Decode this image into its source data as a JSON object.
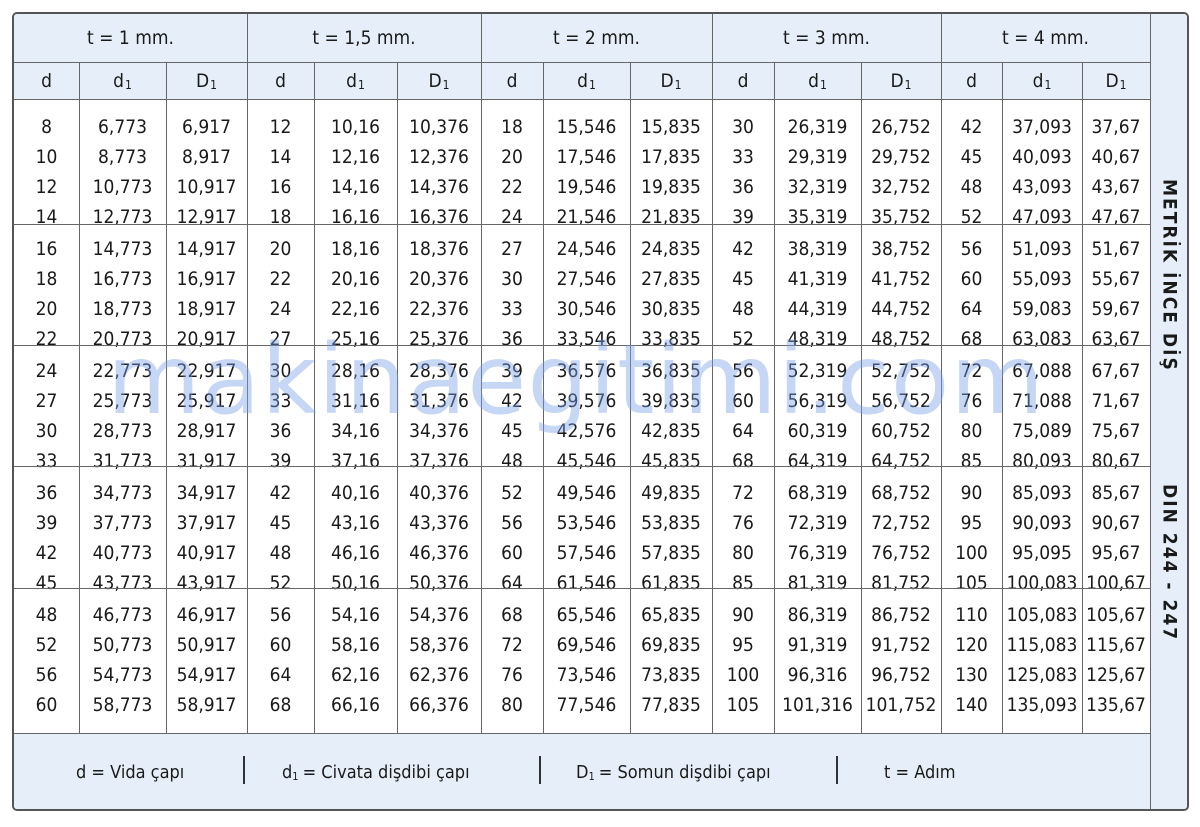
{
  "groups": [
    {
      "pitch": "t = 1 mm.",
      "col_d": "d",
      "col_d1": "d",
      "col_D1": "D",
      "rows": [
        [
          "8",
          "6,773",
          "6,917"
        ],
        [
          "10",
          "8,773",
          "8,917"
        ],
        [
          "12",
          "10,773",
          "10,917"
        ],
        [
          "14",
          "12,773",
          "12,917"
        ],
        [
          "16",
          "14,773",
          "14,917"
        ],
        [
          "18",
          "16,773",
          "16,917"
        ],
        [
          "20",
          "18,773",
          "18,917"
        ],
        [
          "22",
          "20,773",
          "20,917"
        ],
        [
          "24",
          "22,773",
          "22,917"
        ],
        [
          "27",
          "25,773",
          "25,917"
        ],
        [
          "30",
          "28,773",
          "28,917"
        ],
        [
          "33",
          "31,773",
          "31,917"
        ],
        [
          "36",
          "34,773",
          "34,917"
        ],
        [
          "39",
          "37,773",
          "37,917"
        ],
        [
          "42",
          "40,773",
          "40,917"
        ],
        [
          "45",
          "43,773",
          "43,917"
        ],
        [
          "48",
          "46,773",
          "46,917"
        ],
        [
          "52",
          "50,773",
          "50,917"
        ],
        [
          "56",
          "54,773",
          "54,917"
        ],
        [
          "60",
          "58,773",
          "58,917"
        ]
      ]
    },
    {
      "pitch": "t = 1,5 mm.",
      "col_d": "d",
      "col_d1": "d",
      "col_D1": "D",
      "rows": [
        [
          "12",
          "10,16",
          "10,376"
        ],
        [
          "14",
          "12,16",
          "12,376"
        ],
        [
          "16",
          "14,16",
          "14,376"
        ],
        [
          "18",
          "16,16",
          "16,376"
        ],
        [
          "20",
          "18,16",
          "18,376"
        ],
        [
          "22",
          "20,16",
          "20,376"
        ],
        [
          "24",
          "22,16",
          "22,376"
        ],
        [
          "27",
          "25,16",
          "25,376"
        ],
        [
          "30",
          "28,16",
          "28,376"
        ],
        [
          "33",
          "31,16",
          "31,376"
        ],
        [
          "36",
          "34,16",
          "34,376"
        ],
        [
          "39",
          "37,16",
          "37,376"
        ],
        [
          "42",
          "40,16",
          "40,376"
        ],
        [
          "45",
          "43,16",
          "43,376"
        ],
        [
          "48",
          "46,16",
          "46,376"
        ],
        [
          "52",
          "50,16",
          "50,376"
        ],
        [
          "56",
          "54,16",
          "54,376"
        ],
        [
          "60",
          "58,16",
          "58,376"
        ],
        [
          "64",
          "62,16",
          "62,376"
        ],
        [
          "68",
          "66,16",
          "66,376"
        ]
      ]
    },
    {
      "pitch": "t = 2 mm.",
      "col_d": "d",
      "col_d1": "d",
      "col_D1": "D",
      "rows": [
        [
          "18",
          "15,546",
          "15,835"
        ],
        [
          "20",
          "17,546",
          "17,835"
        ],
        [
          "22",
          "19,546",
          "19,835"
        ],
        [
          "24",
          "21,546",
          "21,835"
        ],
        [
          "27",
          "24,546",
          "24,835"
        ],
        [
          "30",
          "27,546",
          "27,835"
        ],
        [
          "33",
          "30,546",
          "30,835"
        ],
        [
          "36",
          "33,546",
          "33,835"
        ],
        [
          "39",
          "36,576",
          "36,835"
        ],
        [
          "42",
          "39,576",
          "39,835"
        ],
        [
          "45",
          "42,576",
          "42,835"
        ],
        [
          "48",
          "45,546",
          "45,835"
        ],
        [
          "52",
          "49,546",
          "49,835"
        ],
        [
          "56",
          "53,546",
          "53,835"
        ],
        [
          "60",
          "57,546",
          "57,835"
        ],
        [
          "64",
          "61,546",
          "61,835"
        ],
        [
          "68",
          "65,546",
          "65,835"
        ],
        [
          "72",
          "69,546",
          "69,835"
        ],
        [
          "76",
          "73,546",
          "73,835"
        ],
        [
          "80",
          "77,546",
          "77,835"
        ]
      ]
    },
    {
      "pitch": "t = 3 mm.",
      "col_d": "d",
      "col_d1": "d",
      "col_D1": "D",
      "rows": [
        [
          "30",
          "26,319",
          "26,752"
        ],
        [
          "33",
          "29,319",
          "29,752"
        ],
        [
          "36",
          "32,319",
          "32,752"
        ],
        [
          "39",
          "35,319",
          "35,752"
        ],
        [
          "42",
          "38,319",
          "38,752"
        ],
        [
          "45",
          "41,319",
          "41,752"
        ],
        [
          "48",
          "44,319",
          "44,752"
        ],
        [
          "52",
          "48,319",
          "48,752"
        ],
        [
          "56",
          "52,319",
          "52,752"
        ],
        [
          "60",
          "56,319",
          "56,752"
        ],
        [
          "64",
          "60,319",
          "60,752"
        ],
        [
          "68",
          "64,319",
          "64,752"
        ],
        [
          "72",
          "68,319",
          "68,752"
        ],
        [
          "76",
          "72,319",
          "72,752"
        ],
        [
          "80",
          "76,319",
          "76,752"
        ],
        [
          "85",
          "81,319",
          "81,752"
        ],
        [
          "90",
          "86,319",
          "86,752"
        ],
        [
          "95",
          "91,319",
          "91,752"
        ],
        [
          "100",
          "96,316",
          "96,752"
        ],
        [
          "105",
          "101,316",
          "101,752"
        ]
      ]
    },
    {
      "pitch": "t = 4 mm.",
      "col_d": "d",
      "col_d1": "d",
      "col_D1": "D",
      "rows": [
        [
          "42",
          "37,093",
          "37,67"
        ],
        [
          "45",
          "40,093",
          "40,67"
        ],
        [
          "48",
          "43,093",
          "43,67"
        ],
        [
          "52",
          "47,093",
          "47,67"
        ],
        [
          "56",
          "51,093",
          "51,67"
        ],
        [
          "60",
          "55,093",
          "55,67"
        ],
        [
          "64",
          "59,083",
          "59,67"
        ],
        [
          "68",
          "63,083",
          "63,67"
        ],
        [
          "72",
          "67,088",
          "67,67"
        ],
        [
          "76",
          "71,088",
          "71,67"
        ],
        [
          "80",
          "75,089",
          "75,67"
        ],
        [
          "85",
          "80,093",
          "80,67"
        ],
        [
          "90",
          "85,093",
          "85,67"
        ],
        [
          "95",
          "90,093",
          "90,67"
        ],
        [
          "100",
          "95,095",
          "95,67"
        ],
        [
          "105",
          "100,083",
          "100,67"
        ],
        [
          "110",
          "105,083",
          "105,67"
        ],
        [
          "120",
          "115,083",
          "115,67"
        ],
        [
          "130",
          "125,083",
          "125,67"
        ],
        [
          "140",
          "135,093",
          "135,67"
        ]
      ]
    }
  ],
  "subscript": "1",
  "side_labels": [
    "METRİK İNCE DİŞ",
    "DIN 244 - 247"
  ],
  "legend": {
    "d_text": "d = Vida çapı",
    "d1_base": "d",
    "d1_text": "= Civata dişdibi çapı",
    "D1_base": "D",
    "D1_text": "= Somun dişdibi çapı",
    "t_text": "t =  Adım"
  },
  "watermark": "makinaegitimi.com"
}
